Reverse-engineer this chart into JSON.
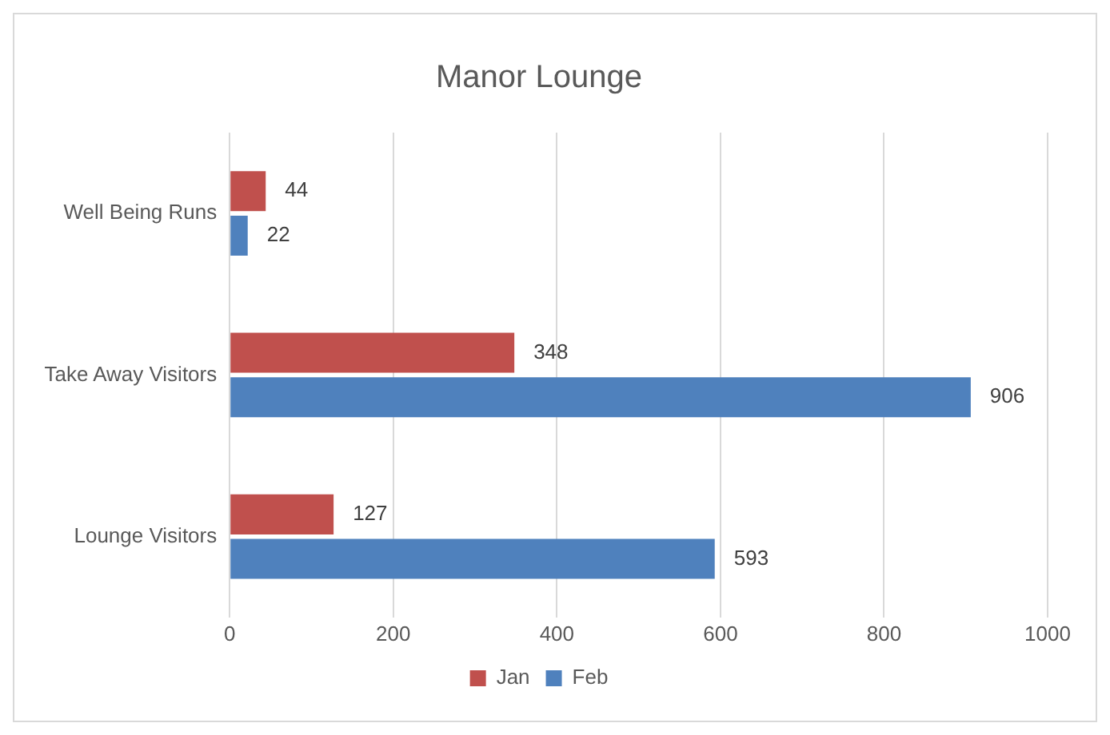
{
  "chart_data": {
    "type": "bar",
    "orientation": "horizontal",
    "title": "Manor Lounge",
    "categories": [
      "Well Being Runs",
      "Take Away Visitors",
      "Lounge Visitors"
    ],
    "series": [
      {
        "name": "Jan",
        "color": "#c0504d",
        "values": [
          44,
          348,
          127
        ]
      },
      {
        "name": "Feb",
        "color": "#4f81bd",
        "values": [
          22,
          906,
          593
        ]
      }
    ],
    "xlim": [
      0,
      1000
    ],
    "xticks": [
      0,
      200,
      400,
      600,
      800,
      1000
    ],
    "grid": "x",
    "legend": "bottom",
    "data_labels": true
  }
}
